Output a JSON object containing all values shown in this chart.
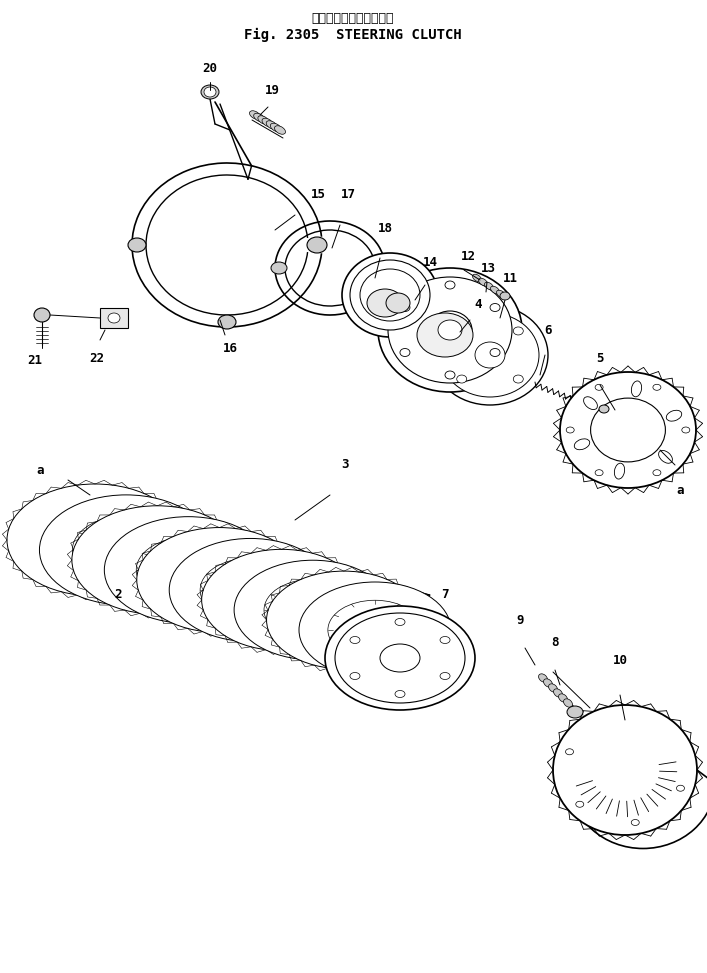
{
  "title_japanese": "ステアリング　クラッチ",
  "title_english": "Fig. 2305  STEERING CLUTCH",
  "bg": "#ffffff",
  "lc": "#000000",
  "figsize": [
    7.07,
    9.73
  ],
  "dpi": 100
}
